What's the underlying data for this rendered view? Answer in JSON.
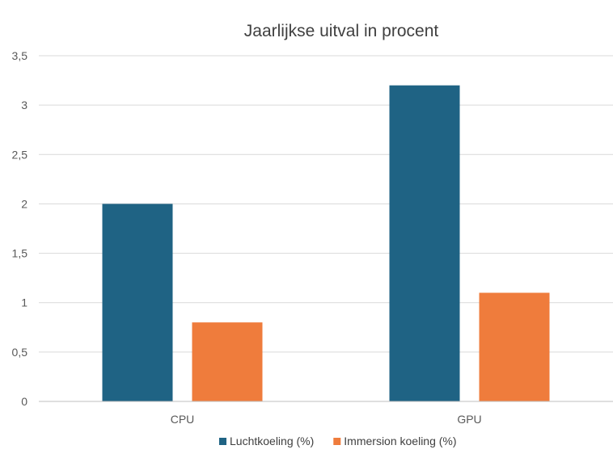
{
  "chart_data": {
    "type": "bar",
    "title": "Jaarlijkse uitval in procent",
    "categories": [
      "CPU",
      "GPU"
    ],
    "series": [
      {
        "name": "Luchtkoeling (%)",
        "values": [
          2,
          3.2
        ],
        "color": "#1f6384"
      },
      {
        "name": "Immersion koeling (%)",
        "values": [
          0.8,
          1.1
        ],
        "color": "#ef7c3c"
      }
    ],
    "ylim": [
      0,
      3.5
    ],
    "yticks": [
      "0",
      "0,5",
      "1",
      "1,5",
      "2",
      "2,5",
      "3",
      "3,5"
    ],
    "grid": true,
    "legend": "bottom"
  }
}
